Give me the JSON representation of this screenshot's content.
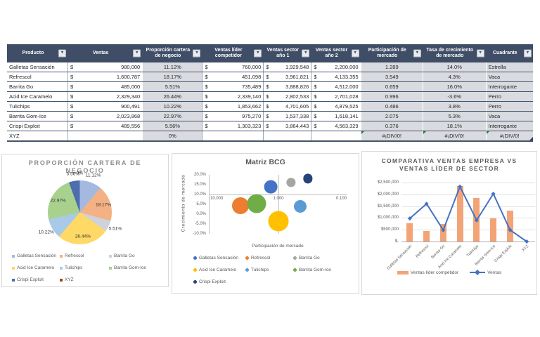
{
  "table": {
    "header": [
      "Producto",
      "Ventas",
      "Proporción cartera de negocio",
      "Ventas líder competidor",
      "Ventas sector año 1",
      "Ventas sector año 2",
      "Participación de mercado",
      "Tasa de crecimiento de mercado",
      "Cuadrante"
    ],
    "col_widths_pct": [
      11.5,
      14.2,
      11.4,
      11.6,
      9.1,
      9.4,
      11.8,
      12.0,
      9.0
    ],
    "filter_icon": "▾",
    "currency_symbol": "$",
    "rows": [
      {
        "producto": "Galletas Sensación",
        "ventas": "980,000",
        "proporcion": "11.12%",
        "lider": "760,000",
        "sector1": "1,929,548",
        "sector2": "2,200,000",
        "participacion": "1.289",
        "tasa": "14.0%",
        "cuadrante": "Estrella"
      },
      {
        "producto": "Refrescol",
        "ventas": "1,600,787",
        "proporcion": "18.17%",
        "lider": "451,098",
        "sector1": "3,961,821",
        "sector2": "4,133,355",
        "participacion": "3.549",
        "tasa": "4.3%",
        "cuadrante": "Vaca"
      },
      {
        "producto": "Barrita Go",
        "ventas": "485,000",
        "proporcion": "5.51%",
        "lider": "735,489",
        "sector1": "3,888,826",
        "sector2": "4,512,000",
        "participacion": "0.659",
        "tasa": "16.0%",
        "cuadrante": "Interrogante"
      },
      {
        "producto": "Acid Ice Caramelo",
        "ventas": "2,329,340",
        "proporcion": "26.44%",
        "lider": "2,339,140",
        "sector1": "2,802,533",
        "sector2": "2,701,028",
        "participacion": "0.996",
        "tasa": "-3.6%",
        "cuadrante": "Perro"
      },
      {
        "producto": "Tulichips",
        "ventas": "900,491",
        "proporcion": "10.22%",
        "lider": "1,853,662",
        "sector1": "4,701,605",
        "sector2": "4,879,525",
        "participacion": "0.486",
        "tasa": "3.8%",
        "cuadrante": "Perro"
      },
      {
        "producto": "Barrita Gom-Ice",
        "ventas": "2,023,868",
        "proporcion": "22.97%",
        "lider": "975,270",
        "sector1": "1,537,338",
        "sector2": "1,618,141",
        "participacion": "2.075",
        "tasa": "5.3%",
        "cuadrante": "Vaca"
      },
      {
        "producto": "Crispi Exploit",
        "ventas": "489,556",
        "proporcion": "5.56%",
        "lider": "1,303,323",
        "sector1": "3,864,443",
        "sector2": "4,563,329",
        "participacion": "0.376",
        "tasa": "18.1%",
        "cuadrante": "Interrogante"
      },
      {
        "producto": "XYZ",
        "ventas": "",
        "proporcion": "0%",
        "lider": "",
        "sector1": "",
        "sector2": "",
        "participacion": "#¡DIV/0!",
        "tasa": "#¡DIV/0!",
        "cuadrante": "#¡DIV/0!"
      }
    ],
    "header_bg": "#3F4E66",
    "gray_col_bg": "#D9DBE0",
    "error_flag_color": "#1E7B34"
  },
  "chart_data": [
    {
      "type": "pie",
      "title": "PROPORCIÓN CARTERA DE NEGOCIO",
      "categories": [
        "Galletas Sensación",
        "Refrescol",
        "Barrita Go",
        "Acid Ice Caramelo",
        "Tulichips",
        "Barrita Gom-Ice",
        "Crispi Exploit",
        "XYZ"
      ],
      "values": [
        11.12,
        18.17,
        5.51,
        26.44,
        10.22,
        22.97,
        5.56,
        0
      ],
      "labels": [
        "11.12%",
        "18.17%",
        "5.51%",
        "26.44%",
        "10.22%",
        "22.97%",
        "5.56%",
        "0%"
      ],
      "colors": [
        "#A3B9DF",
        "#F4B183",
        "#CDD2DC",
        "#FFD966",
        "#A9C9E8",
        "#A9D18E",
        "#4D6DAE",
        "#9E480E"
      ],
      "legend_position": "bottom"
    },
    {
      "type": "scatter",
      "subtype": "bubble",
      "title": "Matriz BCG",
      "xlabel": "Participación de mercado",
      "ylabel": "Crecimiento de mercado",
      "x_scale": "log10-reversed",
      "xlim": [
        10,
        0.1
      ],
      "x_ticks": [
        "10.000",
        "1.000",
        "0.100"
      ],
      "ylim_pct": [
        -10,
        20
      ],
      "y_ticks": [
        "20.0%",
        "15.0%",
        "10.0%",
        "5.0%",
        "0.0%",
        "-5.0%",
        "-10.0%"
      ],
      "cross": {
        "x": 1.0,
        "y_pct": 10
      },
      "series": [
        {
          "name": "Galletas Sensación",
          "x": 1.289,
          "y_pct": 14.0,
          "size": 980000,
          "color": "#4472C4"
        },
        {
          "name": "Refrescol",
          "x": 3.549,
          "y_pct": 4.3,
          "size": 1600787,
          "color": "#ED7D31"
        },
        {
          "name": "Barrita Go",
          "x": 0.659,
          "y_pct": 16.0,
          "size": 485000,
          "color": "#A5A5A5"
        },
        {
          "name": "Acid Ice Caramelo",
          "x": 0.996,
          "y_pct": -3.6,
          "size": 2329340,
          "color": "#FFC000"
        },
        {
          "name": "Tulichips",
          "x": 0.486,
          "y_pct": 3.8,
          "size": 900491,
          "color": "#5B9BD5"
        },
        {
          "name": "Barrita Gom-Ice",
          "x": 2.075,
          "y_pct": 5.3,
          "size": 2023868,
          "color": "#70AD47"
        },
        {
          "name": "Crispi Exploit",
          "x": 0.376,
          "y_pct": 18.1,
          "size": 489556,
          "color": "#264478"
        }
      ],
      "legend_position": "bottom"
    },
    {
      "type": "bar",
      "subtype": "bar+line combo",
      "title": "COMPARATIVA VENTAS EMPRESA VS VENTAS LÍDER DE SECTOR",
      "categories": [
        "Galletas Sensación",
        "Refrescol",
        "Barrita Go",
        "Acid Ice Caramelo",
        "Tulichips",
        "Barrita Gom-Ice",
        "Crispi Exploit",
        "XYZ"
      ],
      "series": [
        {
          "name": "Ventas líder competidor",
          "type": "bar",
          "color": "#F2A477",
          "values": [
            760000,
            451098,
            735489,
            2339140,
            1853662,
            975270,
            1303323,
            0
          ]
        },
        {
          "name": "Ventas",
          "type": "line",
          "color": "#4472C4",
          "values": [
            980000,
            1600787,
            485000,
            2329340,
            900491,
            2023868,
            489556,
            0
          ]
        }
      ],
      "ylim": [
        0,
        2500000
      ],
      "y_ticks": [
        "$2,500,000",
        "$2,000,000",
        "$1,500,000",
        "$1,000,000",
        "$500,000",
        "$-"
      ],
      "grid": true,
      "legend_position": "bottom"
    }
  ]
}
